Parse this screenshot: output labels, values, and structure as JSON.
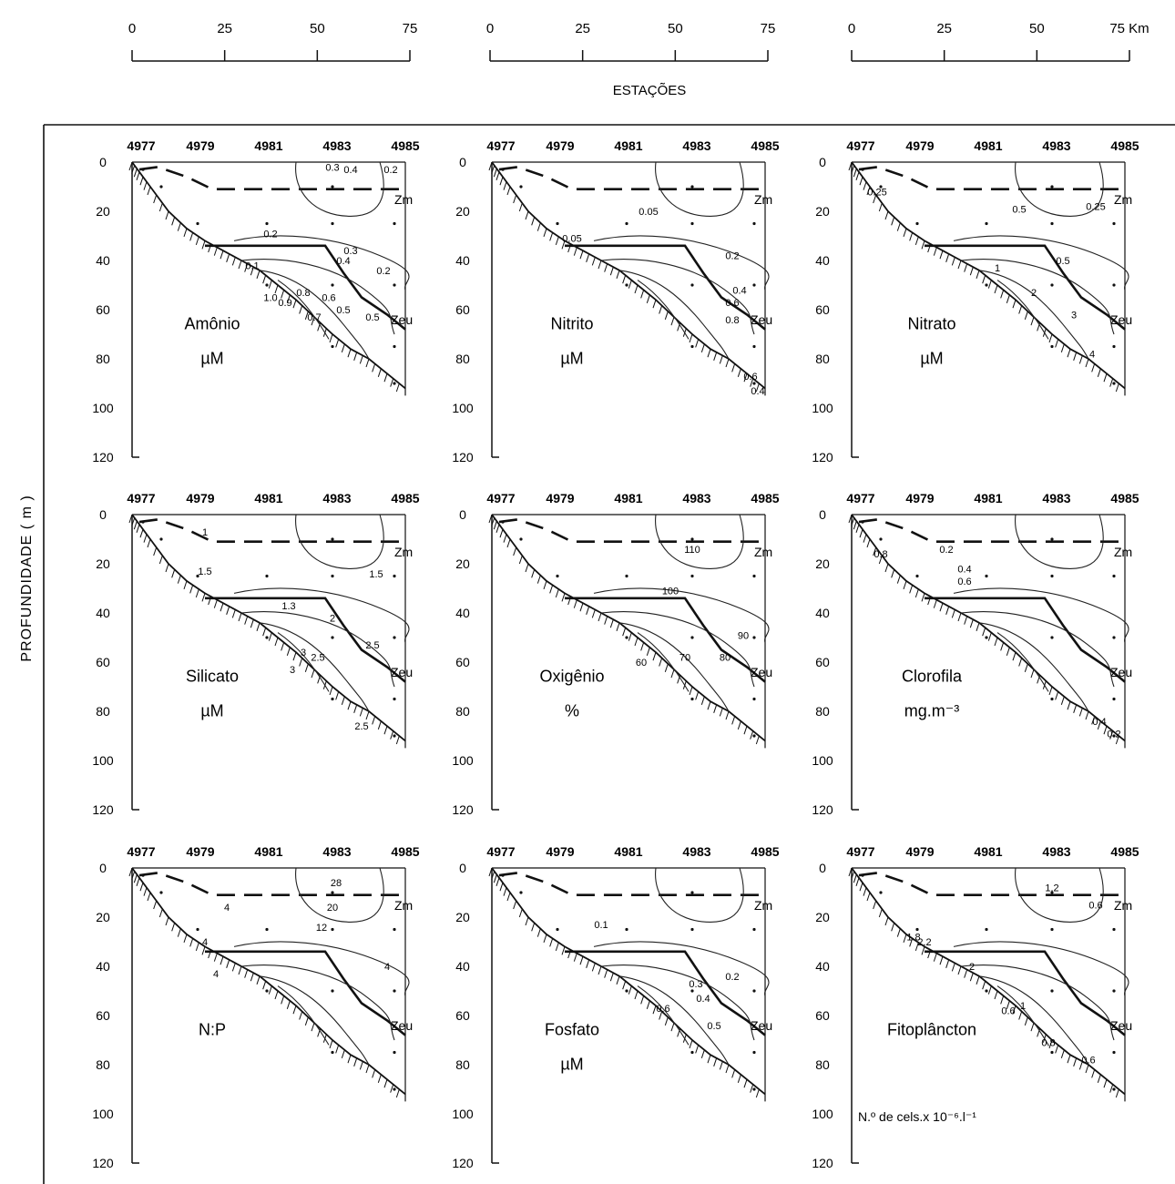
{
  "chart_data": {
    "type": "contour-sections",
    "scale": {
      "ticks": [
        "0",
        "25",
        "50",
        "75"
      ],
      "unit": "Km",
      "label": "ESTAÇÕES"
    },
    "ylabel": "PROFUNDIDADE ( m )",
    "depth_ticks": [
      "0",
      "20",
      "40",
      "60",
      "80",
      "100",
      "120"
    ],
    "ylim": [
      0,
      120
    ],
    "stations": [
      "4977",
      "4979",
      "4981",
      "4983",
      "4985"
    ],
    "line_labels": {
      "zm": "Zm",
      "zeu": "Zeu"
    },
    "panels": [
      {
        "name": "Amônio",
        "unit": "µM",
        "contour_labels": [
          {
            "text": "0.3",
            "x": 55,
            "y": 2
          },
          {
            "text": "0.4",
            "x": 60,
            "y": 3
          },
          {
            "text": "0.2",
            "x": 71,
            "y": 3
          },
          {
            "text": "0.2",
            "x": 38,
            "y": 29
          },
          {
            "text": "0.3",
            "x": 60,
            "y": 36
          },
          {
            "text": "0.4",
            "x": 58,
            "y": 40
          },
          {
            "text": "0.2",
            "x": 69,
            "y": 44
          },
          {
            "text": "0.1",
            "x": 33,
            "y": 42
          },
          {
            "text": "1.0",
            "x": 38,
            "y": 55
          },
          {
            "text": "0.9",
            "x": 42,
            "y": 57
          },
          {
            "text": "0.8",
            "x": 47,
            "y": 53
          },
          {
            "text": "0.7",
            "x": 50,
            "y": 63
          },
          {
            "text": "0.6",
            "x": 54,
            "y": 55
          },
          {
            "text": "0.5",
            "x": 58,
            "y": 60
          },
          {
            "text": "0.5",
            "x": 66,
            "y": 63
          }
        ]
      },
      {
        "name": "Nitrito",
        "unit": "µM",
        "contour_labels": [
          {
            "text": "0.05",
            "x": 43,
            "y": 20
          },
          {
            "text": "0.05",
            "x": 22,
            "y": 31
          },
          {
            "text": "0.2",
            "x": 66,
            "y": 38
          },
          {
            "text": "0.4",
            "x": 68,
            "y": 52
          },
          {
            "text": "0.6",
            "x": 66,
            "y": 57
          },
          {
            "text": "0.8",
            "x": 66,
            "y": 64
          },
          {
            "text": "0.6",
            "x": 71,
            "y": 87
          },
          {
            "text": "0.4",
            "x": 73,
            "y": 93
          }
        ]
      },
      {
        "name": "Nitrato",
        "unit": "µM",
        "contour_labels": [
          {
            "text": "0.25",
            "x": 7,
            "y": 12
          },
          {
            "text": "0.5",
            "x": 46,
            "y": 19
          },
          {
            "text": "0.25",
            "x": 67,
            "y": 18
          },
          {
            "text": "0.5",
            "x": 58,
            "y": 40
          },
          {
            "text": "1",
            "x": 40,
            "y": 43
          },
          {
            "text": "2",
            "x": 50,
            "y": 53
          },
          {
            "text": "3",
            "x": 61,
            "y": 62
          },
          {
            "text": "4",
            "x": 66,
            "y": 78
          }
        ]
      },
      {
        "name": "Silicato",
        "unit": "µM",
        "contour_labels": [
          {
            "text": "1",
            "x": 20,
            "y": 7
          },
          {
            "text": "1.5",
            "x": 20,
            "y": 23
          },
          {
            "text": "1.3",
            "x": 43,
            "y": 37
          },
          {
            "text": "2",
            "x": 55,
            "y": 42
          },
          {
            "text": "3",
            "x": 47,
            "y": 56
          },
          {
            "text": "2.5",
            "x": 51,
            "y": 58
          },
          {
            "text": "3",
            "x": 44,
            "y": 63
          },
          {
            "text": "1.5",
            "x": 67,
            "y": 24
          },
          {
            "text": "2.5",
            "x": 66,
            "y": 53
          },
          {
            "text": "2.5",
            "x": 63,
            "y": 86
          }
        ]
      },
      {
        "name": "Oxigênio",
        "unit": "%",
        "contour_labels": [
          {
            "text": "110",
            "x": 55,
            "y": 14
          },
          {
            "text": "100",
            "x": 49,
            "y": 31
          },
          {
            "text": "90",
            "x": 69,
            "y": 49
          },
          {
            "text": "80",
            "x": 64,
            "y": 58
          },
          {
            "text": "70",
            "x": 53,
            "y": 58
          },
          {
            "text": "60",
            "x": 41,
            "y": 60
          }
        ]
      },
      {
        "name": "Clorofila",
        "unit": "mg.m⁻³",
        "contour_labels": [
          {
            "text": "0.2",
            "x": 26,
            "y": 14
          },
          {
            "text": "0.8",
            "x": 8,
            "y": 16
          },
          {
            "text": "0.4",
            "x": 31,
            "y": 22
          },
          {
            "text": "0.6",
            "x": 31,
            "y": 27
          },
          {
            "text": "0.4",
            "x": 68,
            "y": 84
          },
          {
            "text": "0.2",
            "x": 72,
            "y": 89
          }
        ]
      },
      {
        "name": "N:P",
        "unit": "",
        "contour_labels": [
          {
            "text": "28",
            "x": 56,
            "y": 6
          },
          {
            "text": "20",
            "x": 55,
            "y": 16
          },
          {
            "text": "12",
            "x": 52,
            "y": 24
          },
          {
            "text": "4",
            "x": 26,
            "y": 16
          },
          {
            "text": "4",
            "x": 20,
            "y": 30
          },
          {
            "text": "4",
            "x": 23,
            "y": 43
          },
          {
            "text": "4",
            "x": 70,
            "y": 40
          }
        ]
      },
      {
        "name": "Fosfato",
        "unit": "µM",
        "contour_labels": [
          {
            "text": "0.1",
            "x": 30,
            "y": 23
          },
          {
            "text": "0.2",
            "x": 66,
            "y": 44
          },
          {
            "text": "0.3",
            "x": 56,
            "y": 47
          },
          {
            "text": "0.4",
            "x": 58,
            "y": 53
          },
          {
            "text": "0.6",
            "x": 47,
            "y": 57
          },
          {
            "text": "0.5",
            "x": 61,
            "y": 64
          }
        ]
      },
      {
        "name": "Fitoplâncton",
        "unit": "N.º de cels.x 10⁻⁶.l⁻¹",
        "contour_labels": [
          {
            "text": "1.2",
            "x": 55,
            "y": 8
          },
          {
            "text": "0.6",
            "x": 67,
            "y": 15
          },
          {
            "text": "1.8",
            "x": 17,
            "y": 28
          },
          {
            "text": "2.2",
            "x": 20,
            "y": 30
          },
          {
            "text": "2",
            "x": 33,
            "y": 40
          },
          {
            "text": "0.6",
            "x": 43,
            "y": 58
          },
          {
            "text": "1",
            "x": 47,
            "y": 56
          },
          {
            "text": "0.8",
            "x": 54,
            "y": 71
          },
          {
            "text": "0.6",
            "x": 65,
            "y": 78
          }
        ]
      }
    ]
  }
}
